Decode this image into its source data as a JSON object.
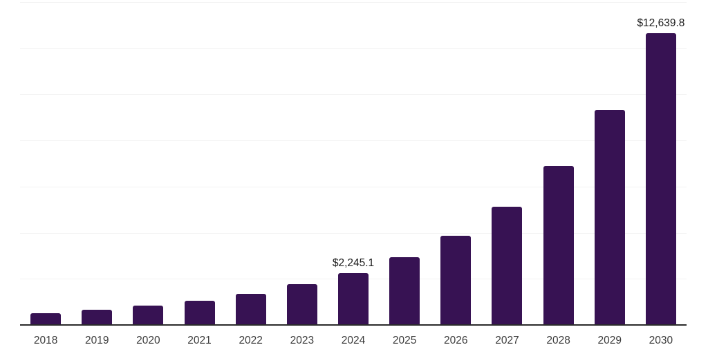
{
  "chart_data": {
    "type": "bar",
    "title": "",
    "xlabel": "",
    "ylabel": "",
    "categories": [
      "2018",
      "2019",
      "2020",
      "2021",
      "2022",
      "2023",
      "2024",
      "2025",
      "2026",
      "2027",
      "2028",
      "2029",
      "2030"
    ],
    "values": [
      520,
      670,
      850,
      1050,
      1350,
      1755,
      2245.1,
      2930,
      3870,
      5140,
      6890,
      9320,
      12639.8
    ],
    "labeled_points": [
      {
        "category": "2024",
        "value": 2245.1,
        "label": "$2,245.1"
      },
      {
        "category": "2030",
        "value": 12639.8,
        "label": "$12,639.8"
      }
    ],
    "ylim": [
      0,
      14000
    ],
    "gridline_step": 2000,
    "grid_visible": true,
    "y_tick_labels_visible": false,
    "legend": "none",
    "colors": {
      "bar": "#371253",
      "grid": "#f2f2f2",
      "axis": "#2b2b2b",
      "tick_label": "#3c3c3c",
      "value_label": "#1a1a1a",
      "background": "#ffffff"
    }
  }
}
